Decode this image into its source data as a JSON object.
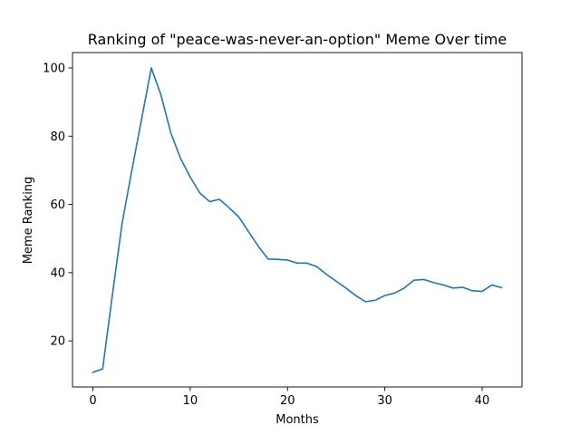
{
  "chart_data": {
    "type": "line",
    "title": "Ranking of \"peace-was-never-an-option\" Meme Over time",
    "xlabel": "Months",
    "ylabel": "Meme Ranking",
    "xlim": [
      -2.1,
      44.1
    ],
    "ylim": [
      6.5,
      104.5
    ],
    "xticks": [
      0,
      10,
      20,
      30,
      40
    ],
    "yticks": [
      20,
      40,
      60,
      80,
      100
    ],
    "grid": false,
    "legend": "none",
    "series": [
      {
        "color": "#1f77b4",
        "x": [
          0,
          1,
          2,
          3,
          4,
          5,
          6,
          7,
          8,
          9,
          10,
          11,
          12,
          13,
          14,
          15,
          16,
          17,
          18,
          19,
          20,
          21,
          22,
          23,
          24,
          25,
          26,
          27,
          28,
          29,
          30,
          31,
          32,
          33,
          34,
          35,
          36,
          37,
          38,
          39,
          40,
          41,
          42
        ],
        "values": [
          10.8,
          11.8,
          33.5,
          54.5,
          70,
          85,
          100,
          92,
          81,
          73.5,
          68,
          63.3,
          60.8,
          61.5,
          59,
          56.3,
          52,
          47.7,
          44,
          43.9,
          43.7,
          42.8,
          42.8,
          41.8,
          39.5,
          37.5,
          35.5,
          33.3,
          31.5,
          31.9,
          33.3,
          34,
          35.5,
          37.8,
          38,
          37.1,
          36.4,
          35.5,
          35.7,
          34.7,
          34.5,
          36.4,
          35.6
        ]
      }
    ]
  }
}
